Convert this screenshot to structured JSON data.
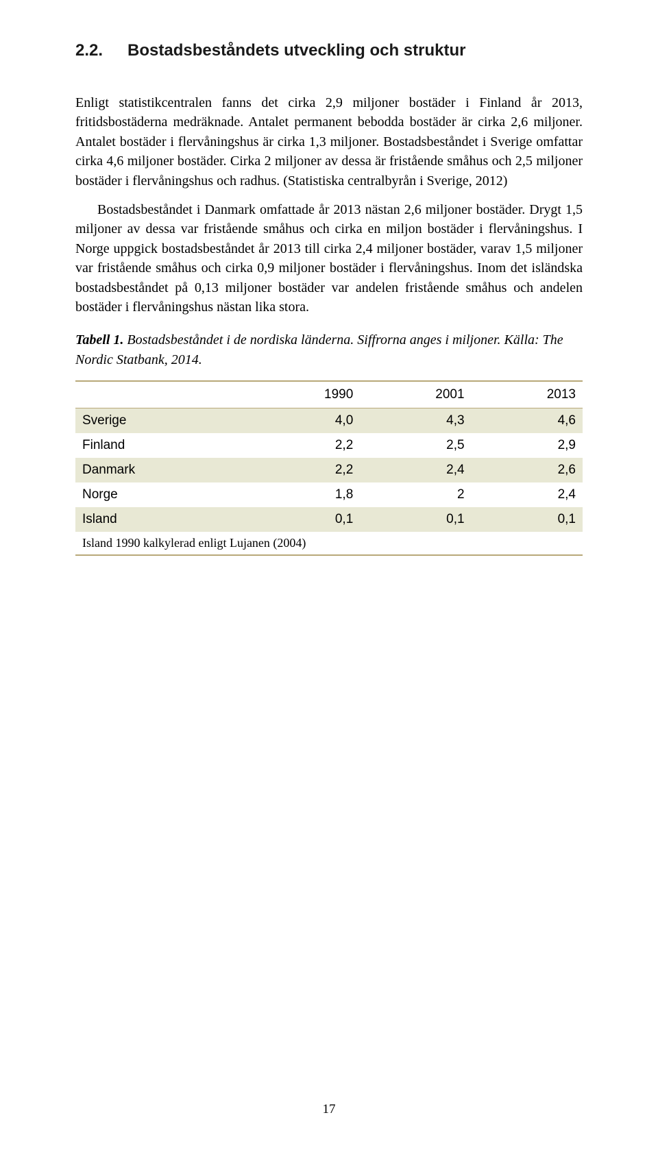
{
  "heading": {
    "number": "2.2.",
    "title": "Bostadsbeståndets utveckling och struktur"
  },
  "paragraphs": {
    "p1": "Enligt statistikcentralen fanns det cirka 2,9 miljoner bostäder i Finland år 2013, fritidsbostäderna medräknade. Antalet permanent bebodda bostäder är cirka 2,6 miljoner. Antalet bostäder i flervåningshus är cirka 1,3 miljoner. Bostadsbeståndet i Sverige omfattar cirka 4,6 miljoner bostäder. Cirka 2 miljoner av dessa är fristående småhus och 2,5 miljoner bostäder i flervåningshus och radhus. (Statistiska centralbyrån i Sverige, 2012)",
    "p2": "Bostadsbeståndet i Danmark omfattade år 2013 nästan 2,6 miljoner bostäder. Drygt 1,5 miljoner av dessa var fristående småhus och cirka en miljon bostäder i flervåningshus. I Norge uppgick bostadsbeståndet år 2013 till cirka 2,4 miljoner bostäder, varav 1,5 miljoner var fristående småhus och cirka 0,9 miljoner bostäder i flervåningshus. Inom det isländska bostadsbeståndet på 0,13 miljoner bostäder var andelen fristående småhus och andelen bostäder i flervåningshus nästan lika stora."
  },
  "tableCaption": {
    "label": "Tabell 1.",
    "text": " Bostadsbeståndet i de nordiska länderna. Siffrorna anges i miljoner. Källa: The Nordic Statbank, 2014."
  },
  "table": {
    "headers": [
      "",
      "1990",
      "2001",
      "2013"
    ],
    "rows": [
      {
        "label": "Sverige",
        "v1": "4,0",
        "v2": "4,3",
        "v3": "4,6",
        "shaded": true
      },
      {
        "label": "Finland",
        "v1": "2,2",
        "v2": "2,5",
        "v3": "2,9",
        "shaded": false
      },
      {
        "label": "Danmark",
        "v1": "2,2",
        "v2": "2,4",
        "v3": "2,6",
        "shaded": true
      },
      {
        "label": "Norge",
        "v1": "1,8",
        "v2": "2",
        "v3": "2,4",
        "shaded": false
      },
      {
        "label": "Island",
        "v1": "0,1",
        "v2": "0,1",
        "v3": "0,1",
        "shaded": true
      }
    ],
    "footnote": "Island 1990 kalkylerad enligt Lujanen (2004)"
  },
  "pageNumber": "17",
  "colors": {
    "tableBorder": "#b8a878",
    "shadedRow": "#e8e8d4"
  }
}
